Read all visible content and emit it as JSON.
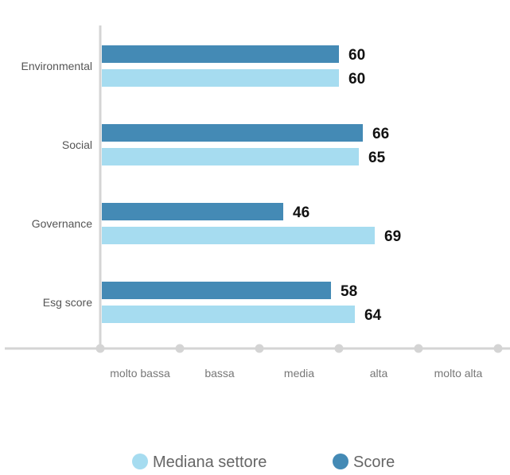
{
  "chart_data": {
    "type": "bar",
    "orientation": "horizontal",
    "title": "",
    "xlabel": "",
    "ylabel": "",
    "categories": [
      "Environmental",
      "Social",
      "Governance",
      "Esg score"
    ],
    "x_tick_labels": [
      "molto bassa",
      "bassa",
      "media",
      "alta",
      "molto alta"
    ],
    "xlim": [
      0,
      100
    ],
    "series": [
      {
        "name": "Score",
        "color": "#448ab5",
        "values": [
          60,
          66,
          46,
          58
        ]
      },
      {
        "name": "Mediana settore",
        "color": "#a6dcf0",
        "values": [
          60,
          65,
          69,
          64
        ]
      }
    ],
    "legend": {
      "position": "bottom",
      "order": [
        "Mediana settore",
        "Score"
      ]
    },
    "axis_color": "#d4d4d4",
    "grid": false
  }
}
